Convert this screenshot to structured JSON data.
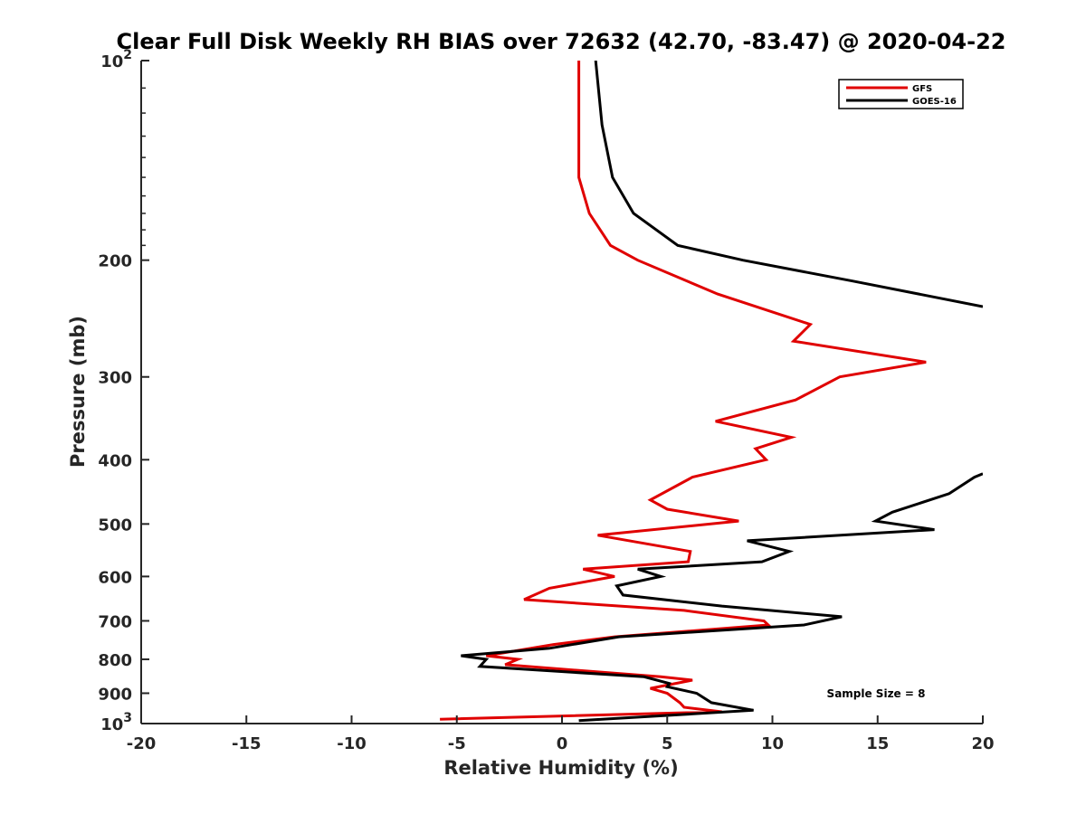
{
  "chart_data": {
    "type": "line",
    "title": "Clear Full Disk Weekly RH BIAS over 72632 (42.70, -83.47) @ 2020-04-22",
    "xlabel": "Relative Humidity (%)",
    "ylabel": "Pressure (mb)",
    "xlim": [
      -20,
      20
    ],
    "ylim": [
      100,
      1000
    ],
    "y_scale": "log",
    "y_reversed": true,
    "grid": false,
    "legend_position": "top-right",
    "x_ticks": [
      "-20",
      "-15",
      "-10",
      "-5",
      "0",
      "5",
      "10",
      "15",
      "20"
    ],
    "y_ticks": [
      {
        "value": 100,
        "label": "10",
        "sup": "2"
      },
      {
        "value": 200,
        "label": "200"
      },
      {
        "value": 300,
        "label": "300"
      },
      {
        "value": 400,
        "label": "400"
      },
      {
        "value": 500,
        "label": "500"
      },
      {
        "value": 600,
        "label": "600"
      },
      {
        "value": 700,
        "label": "700"
      },
      {
        "value": 800,
        "label": "800"
      },
      {
        "value": 900,
        "label": "900"
      },
      {
        "value": 1000,
        "label": "10",
        "sup": "3"
      }
    ],
    "annotation": "Sample Size = 8",
    "series": [
      {
        "name": "GFS",
        "color": "#e00000",
        "points": [
          [
            0.8,
            100
          ],
          [
            0.8,
            125
          ],
          [
            0.8,
            150
          ],
          [
            1.3,
            170
          ],
          [
            2.3,
            190
          ],
          [
            3.6,
            200
          ],
          [
            7.4,
            225
          ],
          [
            11.8,
            250
          ],
          [
            11.0,
            265
          ],
          [
            17.3,
            285
          ],
          [
            13.2,
            300
          ],
          [
            11.1,
            325
          ],
          [
            7.3,
            350
          ],
          [
            10.9,
            370
          ],
          [
            9.2,
            385
          ],
          [
            9.7,
            400
          ],
          [
            6.2,
            425
          ],
          [
            4.2,
            460
          ],
          [
            5.0,
            475
          ],
          [
            8.4,
            495
          ],
          [
            1.7,
            520
          ],
          [
            6.1,
            550
          ],
          [
            6.0,
            570
          ],
          [
            1.0,
            585
          ],
          [
            2.5,
            600
          ],
          [
            -0.6,
            625
          ],
          [
            -1.8,
            650
          ],
          [
            5.8,
            675
          ],
          [
            9.6,
            700
          ],
          [
            9.8,
            710
          ],
          [
            2.5,
            740
          ],
          [
            -0.4,
            760
          ],
          [
            -3.6,
            790
          ],
          [
            -2.1,
            800
          ],
          [
            -2.7,
            815
          ],
          [
            4.7,
            850
          ],
          [
            6.2,
            860
          ],
          [
            4.2,
            885
          ],
          [
            5.0,
            900
          ],
          [
            5.6,
            930
          ],
          [
            5.8,
            945
          ],
          [
            7.6,
            960
          ],
          [
            -5.8,
            985
          ]
        ]
      },
      {
        "name": "GOES-16",
        "color": "#000000",
        "points": [
          [
            1.6,
            100
          ],
          [
            1.9,
            125
          ],
          [
            2.4,
            150
          ],
          [
            3.4,
            170
          ],
          [
            5.5,
            190
          ],
          [
            8.6,
            200
          ],
          [
            13.8,
            215
          ],
          [
            20.0,
            235
          ]
        ]
      },
      {
        "name": "GOES-16",
        "color": "#000000",
        "points": [
          [
            20.0,
            420
          ],
          [
            19.6,
            425
          ],
          [
            18.4,
            450
          ],
          [
            15.7,
            480
          ],
          [
            14.9,
            495
          ],
          [
            17.7,
            510
          ],
          [
            8.8,
            530
          ],
          [
            10.8,
            550
          ],
          [
            9.5,
            570
          ],
          [
            3.6,
            585
          ],
          [
            4.7,
            600
          ],
          [
            2.6,
            620
          ],
          [
            2.9,
            640
          ],
          [
            7.6,
            665
          ],
          [
            13.3,
            690
          ],
          [
            11.5,
            710
          ],
          [
            2.7,
            740
          ],
          [
            -0.6,
            770
          ],
          [
            -4.8,
            790
          ],
          [
            -3.6,
            800
          ],
          [
            -3.9,
            820
          ],
          [
            3.9,
            850
          ],
          [
            5.1,
            870
          ],
          [
            5.0,
            880
          ],
          [
            6.4,
            900
          ],
          [
            7.1,
            930
          ],
          [
            9.1,
            955
          ],
          [
            0.8,
            990
          ]
        ]
      }
    ]
  }
}
